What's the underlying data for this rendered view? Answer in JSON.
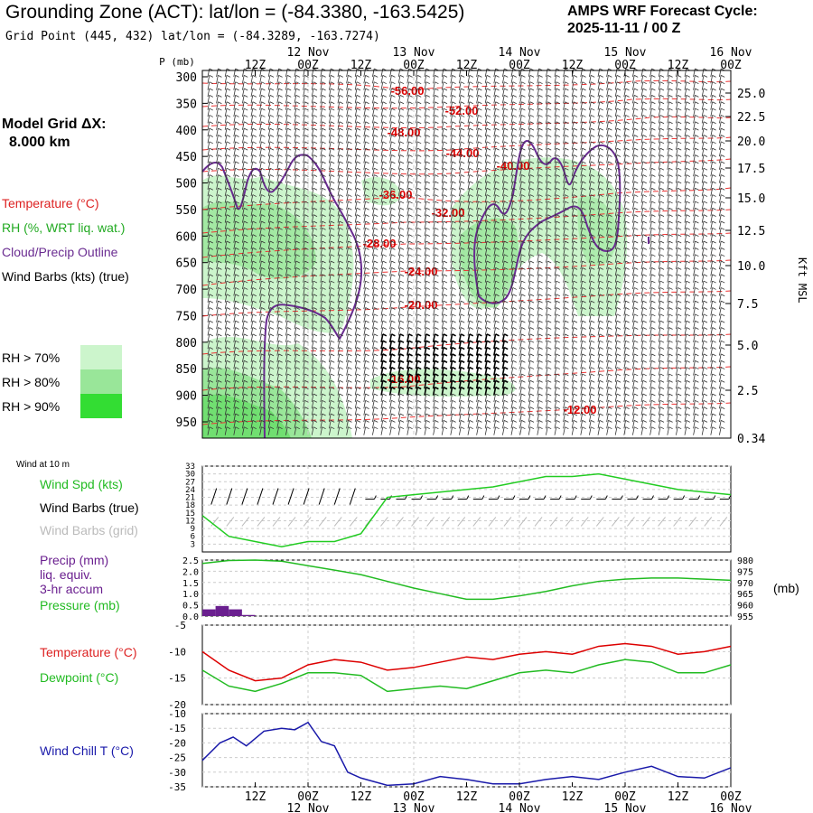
{
  "header": {
    "title": "Grounding Zone (ACT):  lat/lon = (-84.3380, -163.5425)",
    "subtitle": "Grid Point (445, 432) lat/lon = (-84.3289, -163.7274)",
    "cycle_line1": "AMPS WRF Forecast Cycle:",
    "cycle_line2": "2025-11-11 / 00  Z"
  },
  "left_panel": {
    "model_grid_line1": "Model Grid ΔX:",
    "model_grid_line2": "8.000 km",
    "legend_temperature": "Temperature (°C)",
    "legend_rh": "RH (%, WRT liq. wat.)",
    "legend_cloud": "Cloud/Precip Outline",
    "legend_wind": "Wind Barbs (kts) (true)",
    "rh70": "RH > 70%",
    "rh80": "RH > 80%",
    "rh90": "RH > 90%",
    "wind10m": "Wind at 10 m",
    "windspd": "Wind Spd (kts)",
    "barbs_true": "Wind Barbs (true)",
    "barbs_grid": "Wind Barbs (grid)",
    "precip1": "Precip (mm)",
    "precip2": "liq. equiv.",
    "precip3": "3-hr accum",
    "pressure": "Pressure (mb)",
    "temp": "Temperature (°C)",
    "dew": "Dewpoint (°C)",
    "windchill": "Wind Chill T (°C)"
  },
  "axis_labels": {
    "p_label": "P (mb)",
    "kft_label": "Kft MSL",
    "mb_label": "(mb)"
  },
  "colors": {
    "temperature": "#dd0000",
    "rh_label": "#cc0000",
    "cloud": "#6a2c91",
    "wind_spd": "#22cc22",
    "precip": "#6a1f8f",
    "dewpoint": "#22bb22",
    "windchill": "#1a1aaa",
    "rh70": "#ccf5cc",
    "rh80": "#99e699",
    "rh90": "#33dd33"
  },
  "chart_data": [
    {
      "type": "heatmap",
      "name": "cross-section",
      "time_labels_top": [
        "12Z",
        "00Z",
        "12Z",
        "00Z",
        "12Z",
        "00Z",
        "12Z",
        "00Z",
        "12Z",
        "00Z"
      ],
      "date_labels": [
        "12 Nov",
        "13 Nov",
        "14 Nov",
        "15 Nov",
        "16 Nov"
      ],
      "pressure_ticks": [
        300,
        350,
        400,
        450,
        500,
        550,
        600,
        650,
        700,
        750,
        800,
        850,
        900,
        950
      ],
      "kft_ticks": [
        "25.0",
        "22.5",
        "20.0",
        "17.5",
        "15.0",
        "12.5",
        "10.0",
        "7.5",
        "5.0",
        "2.5",
        "0.34"
      ],
      "temperature_labels": [
        "-56.00",
        "-52.00",
        "-48.00",
        "-44.00",
        "-40.00",
        "-36.00",
        "-32.00",
        "-28.00",
        "-24.00",
        "-20.00",
        "-16.00",
        "-12.00"
      ]
    },
    {
      "type": "line",
      "name": "wind-speed",
      "yticks": [
        3,
        6,
        9,
        12,
        15,
        18,
        21,
        24,
        27,
        30,
        33
      ],
      "x_hours": [
        0,
        6,
        12,
        18,
        24,
        30,
        36,
        42,
        48,
        54,
        60,
        66,
        72,
        78,
        84,
        90,
        96,
        102,
        108,
        114,
        120
      ],
      "series": [
        {
          "values": [
            14,
            6,
            4,
            2,
            4,
            4,
            7,
            21,
            22,
            23,
            24,
            25,
            27,
            29,
            29,
            30,
            28,
            26,
            24,
            23,
            22
          ]
        }
      ]
    },
    {
      "type": "bar",
      "name": "precip-pressure",
      "yticks_left": [
        "0.0",
        "0.5",
        "1.0",
        "1.5",
        "2.0",
        "2.5"
      ],
      "yticks_right": [
        955,
        960,
        965,
        970,
        975,
        980
      ],
      "precip_x_hours": [
        0,
        3,
        6,
        9
      ],
      "precip_values": [
        0.3,
        0.45,
        0.3,
        0.05
      ],
      "pressure_x_hours": [
        0,
        6,
        12,
        18,
        24,
        30,
        36,
        42,
        48,
        54,
        60,
        66,
        72,
        78,
        84,
        90,
        96,
        102,
        108,
        114,
        120
      ],
      "pressure_values": [
        978.5,
        979.8,
        980,
        979.5,
        977.5,
        975.5,
        973.5,
        970.5,
        967.5,
        965,
        962.5,
        962.5,
        964,
        966,
        968.5,
        970.5,
        971.5,
        972,
        972,
        971.5,
        971
      ]
    },
    {
      "type": "line",
      "name": "temperature-dewpoint",
      "yticks": [
        -5,
        -10,
        -15,
        -20
      ],
      "x_hours": [
        0,
        6,
        12,
        18,
        24,
        30,
        36,
        42,
        48,
        54,
        60,
        66,
        72,
        78,
        84,
        90,
        96,
        102,
        108,
        114,
        120
      ],
      "series": [
        {
          "name": "Temperature",
          "values": [
            -10,
            -13.5,
            -15.5,
            -15,
            -12.5,
            -11.5,
            -12,
            -13.5,
            -13,
            -12,
            -11,
            -11.5,
            -10.5,
            -10,
            -10.5,
            -9,
            -8.5,
            -9,
            -10.5,
            -10,
            -9
          ]
        },
        {
          "name": "Dewpoint",
          "values": [
            -13.5,
            -16.5,
            -17.5,
            -16,
            -14,
            -14,
            -14.5,
            -17.5,
            -17,
            -16.5,
            -17,
            -15.5,
            -14,
            -13.5,
            -14,
            -12.5,
            -11.5,
            -12,
            -14,
            -14,
            -12.5
          ]
        }
      ]
    },
    {
      "type": "line",
      "name": "wind-chill",
      "yticks": [
        -10,
        -15,
        -20,
        -25,
        -30,
        -35
      ],
      "x_hours": [
        0,
        4,
        7,
        10,
        14,
        18,
        21,
        24,
        27,
        30,
        33,
        36,
        42,
        48,
        54,
        60,
        66,
        72,
        78,
        84,
        90,
        96,
        102,
        108,
        114,
        120
      ],
      "series": [
        {
          "values": [
            -26,
            -20,
            -18,
            -21,
            -16,
            -15,
            -15.5,
            -13,
            -19.5,
            -21,
            -30,
            -32,
            -34.5,
            -34,
            -31.5,
            -32.5,
            -34,
            -34,
            -32.5,
            -31.5,
            -32.5,
            -30,
            -28,
            -31.5,
            -32,
            -28.5
          ]
        }
      ]
    }
  ]
}
